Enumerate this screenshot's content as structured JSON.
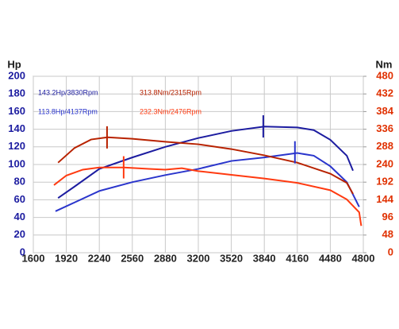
{
  "chart_data": {
    "type": "line",
    "y_label": "Hp",
    "y2_label": "Nm",
    "xlim": [
      1600,
      4800
    ],
    "xticks": [
      1600,
      1920,
      2240,
      2560,
      2880,
      3200,
      3520,
      3840,
      4160,
      4480,
      4800
    ],
    "ylim": [
      0,
      200
    ],
    "yticks": [
      0,
      20,
      40,
      60,
      80,
      100,
      120,
      140,
      160,
      180,
      200
    ],
    "y2lim": [
      0,
      480
    ],
    "y2ticks": [
      0,
      48,
      96,
      144,
      192,
      240,
      288,
      336,
      384,
      432,
      480
    ],
    "grid": true,
    "series": [
      {
        "name": "143.2Hp/3830Rpm",
        "color": "#1c1ca0",
        "x": [
          1840,
          2000,
          2240,
          2560,
          2880,
          3200,
          3520,
          3840,
          4160,
          4320,
          4480,
          4640,
          4700
        ],
        "values": [
          62,
          75,
          95,
          108,
          120,
          130,
          138,
          143,
          142,
          139,
          128,
          110,
          93
        ]
      },
      {
        "name": "113.8Hp/4137Rpm",
        "color": "#2a35cc",
        "x": [
          1815,
          2000,
          2240,
          2560,
          2880,
          3200,
          3520,
          3840,
          4160,
          4320,
          4480,
          4640,
          4760
        ],
        "values": [
          47,
          57,
          70,
          80,
          88,
          95,
          104,
          108,
          113,
          110,
          98,
          80,
          52
        ]
      },
      {
        "name": "313.8Nm/2315Rpm",
        "color": "#b82200",
        "axis": "y2",
        "x": [
          1840,
          2000,
          2160,
          2320,
          2560,
          2880,
          3200,
          3520,
          3840,
          4160,
          4480,
          4640,
          4700
        ],
        "values": [
          245,
          285,
          308,
          314,
          310,
          302,
          295,
          282,
          265,
          245,
          215,
          190,
          160
        ]
      },
      {
        "name": "232.3Nm/2476Rpm",
        "color": "#ff3a10",
        "axis": "y2",
        "x": [
          1800,
          1920,
          2080,
          2240,
          2480,
          2720,
          2880,
          3040,
          3200,
          3520,
          3840,
          4160,
          4480,
          4640,
          4760,
          4780
        ],
        "values": [
          184,
          210,
          226,
          232,
          232,
          228,
          226,
          230,
          222,
          212,
          202,
          190,
          170,
          145,
          110,
          73
        ]
      }
    ],
    "peak_markers": [
      {
        "series": 0,
        "x": 3830,
        "y": 143.2
      },
      {
        "series": 1,
        "x": 4137,
        "y": 113.8
      },
      {
        "series": 2,
        "x": 2315,
        "y": 313.8
      },
      {
        "series": 3,
        "x": 2476,
        "y": 232.3
      }
    ]
  }
}
